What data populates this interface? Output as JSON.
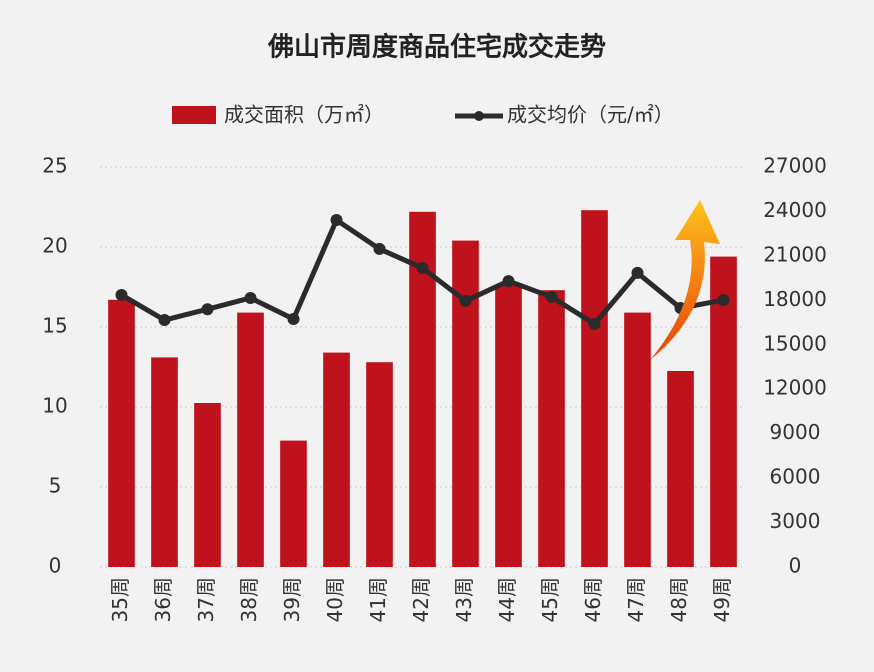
{
  "chart_data": {
    "type": "bar",
    "title": "佛山市周度商品住宅成交走势",
    "categories": [
      "35周",
      "36周",
      "37周",
      "38周",
      "39周",
      "40周",
      "41周",
      "42周",
      "43周",
      "44周",
      "45周",
      "46周",
      "47周",
      "48周",
      "49周"
    ],
    "series": [
      {
        "name": "成交面积（万㎡）",
        "type": "bar",
        "color": "#c0121c",
        "values": [
          16.7,
          13.1,
          10.25,
          15.9,
          7.9,
          13.4,
          12.8,
          22.2,
          20.4,
          17.6,
          17.3,
          22.3,
          15.9,
          12.25,
          19.4
        ]
      },
      {
        "name": "成交均价（元/㎡）",
        "type": "line",
        "axis": "y2",
        "color": "#2b2b2b",
        "values": [
          18360,
          16670,
          17400,
          18160,
          16740,
          23420,
          21470,
          20180,
          17960,
          19300,
          18230,
          16400,
          19850,
          17480,
          18020
        ]
      }
    ],
    "ylim": [
      0,
      25
    ],
    "yticks": [
      0,
      5,
      10,
      15,
      20,
      25
    ],
    "y2lim": [
      0,
      27000
    ],
    "y2ticks": [
      0,
      3000,
      6000,
      9000,
      12000,
      15000,
      18000,
      21000,
      24000,
      27000
    ],
    "grid": true,
    "legend": "top"
  }
}
